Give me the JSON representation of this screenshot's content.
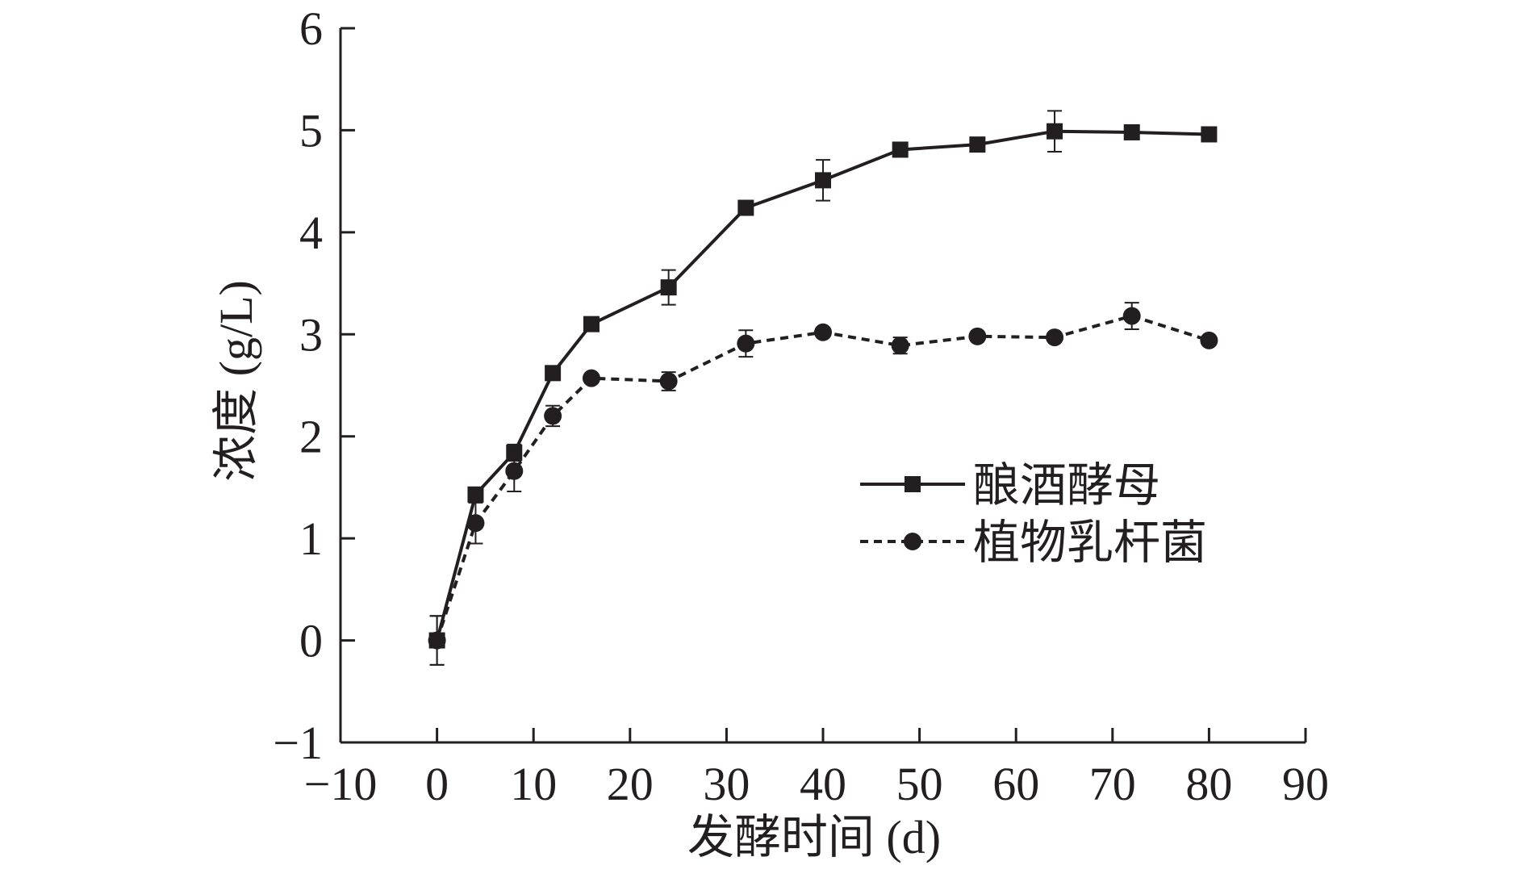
{
  "chart_data": {
    "type": "line",
    "title": "",
    "xlabel": "发酵时间 (d)",
    "ylabel": "浓度 (g/L)",
    "xlim": [
      -10,
      90
    ],
    "ylim": [
      -1,
      6
    ],
    "xticks": [
      -10,
      0,
      10,
      20,
      30,
      40,
      50,
      60,
      70,
      80,
      90
    ],
    "yticks": [
      -1,
      0,
      1,
      2,
      3,
      4,
      5,
      6
    ],
    "xtick_labels": [
      "−10",
      "0",
      "10",
      "20",
      "30",
      "40",
      "50",
      "60",
      "70",
      "80",
      "90"
    ],
    "ytick_labels": [
      "−1",
      "0",
      "1",
      "2",
      "3",
      "4",
      "5",
      "6"
    ],
    "grid": false,
    "legend_position": "right-center",
    "series": [
      {
        "name": "酿酒酵母",
        "marker": "square",
        "line_style": "solid",
        "color": "#231f20",
        "x": [
          0,
          4,
          8,
          12,
          16,
          24,
          32,
          40,
          48,
          56,
          64,
          72,
          80
        ],
        "y": [
          0.0,
          1.43,
          1.84,
          2.62,
          3.1,
          3.46,
          4.24,
          4.51,
          4.81,
          4.86,
          4.99,
          4.98,
          4.96
        ],
        "err": [
          0.24,
          0.05,
          0.08,
          0.04,
          0.03,
          0.17,
          0.03,
          0.2,
          0.03,
          0.06,
          0.2,
          0.03,
          0.03
        ]
      },
      {
        "name": "植物乳杆菌",
        "marker": "circle",
        "line_style": "dashed",
        "color": "#231f20",
        "x": [
          0,
          4,
          8,
          12,
          16,
          24,
          32,
          40,
          48,
          56,
          64,
          72,
          80
        ],
        "y": [
          0.0,
          1.15,
          1.66,
          2.2,
          2.57,
          2.54,
          2.91,
          3.02,
          2.89,
          2.98,
          2.97,
          3.18,
          2.94
        ],
        "err": [
          0.24,
          0.2,
          0.2,
          0.1,
          0.03,
          0.09,
          0.13,
          0.03,
          0.08,
          0.03,
          0.03,
          0.13,
          0.03
        ]
      }
    ]
  }
}
